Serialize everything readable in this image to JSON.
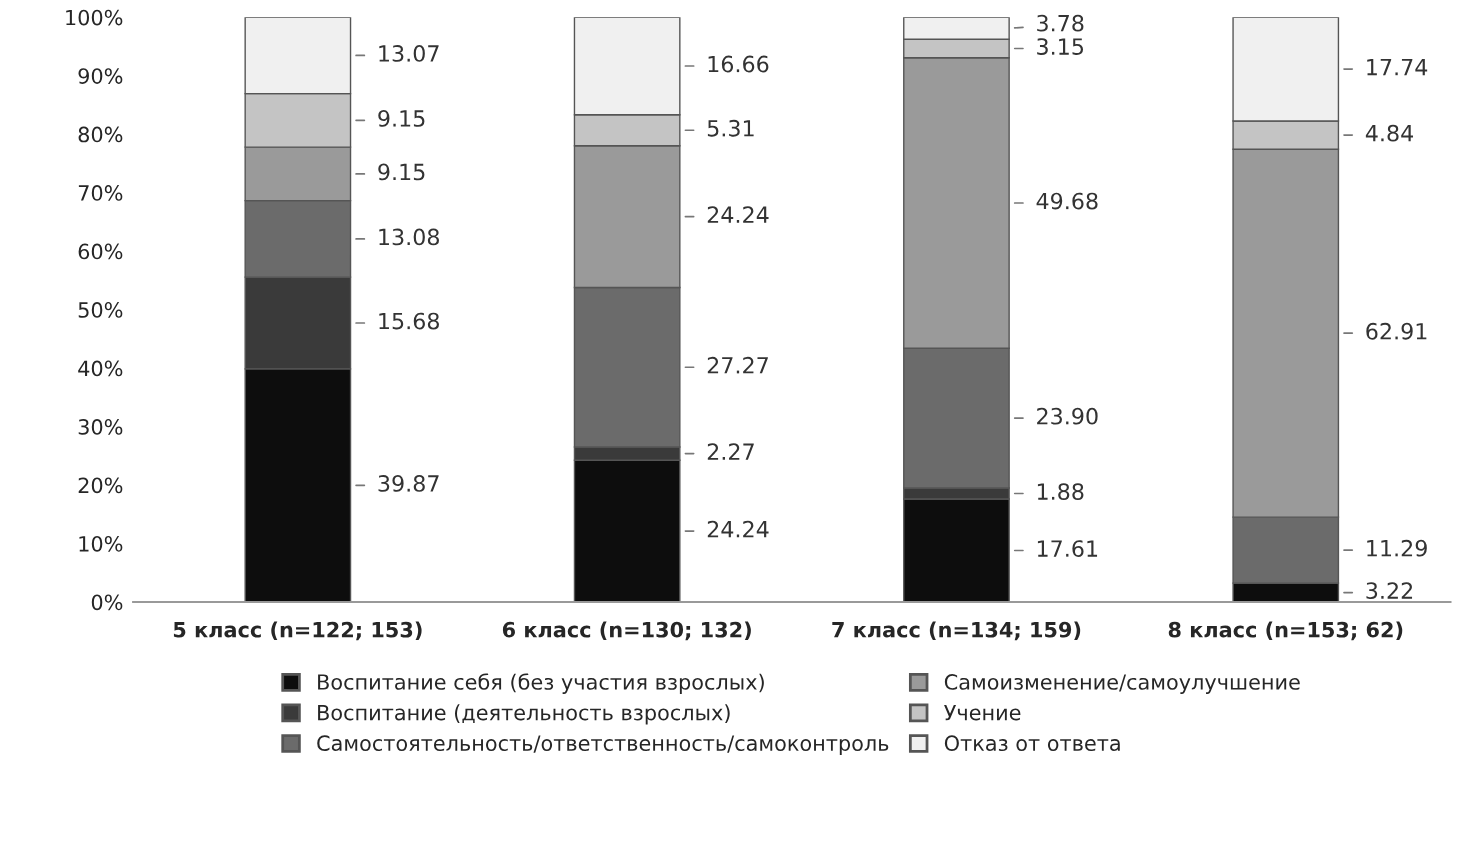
{
  "chart_data": {
    "type": "bar",
    "stacked": true,
    "categories": [
      "5 класс (n=122; 153)",
      "6 класс (n=130; 132)",
      "7 класс (n=134; 159)",
      "8 класс (n=153; 62)"
    ],
    "ylim": [
      0,
      100
    ],
    "yticks": [
      {
        "value": 0,
        "label": "0%"
      },
      {
        "value": 10,
        "label": "10%"
      },
      {
        "value": 20,
        "label": "20%"
      },
      {
        "value": 30,
        "label": "30%"
      },
      {
        "value": 40,
        "label": "40%"
      },
      {
        "value": 50,
        "label": "50%"
      },
      {
        "value": 60,
        "label": "60%"
      },
      {
        "value": 70,
        "label": "70%"
      },
      {
        "value": 80,
        "label": "80%"
      },
      {
        "value": 90,
        "label": "90%"
      },
      {
        "value": 100,
        "label": "100%"
      }
    ],
    "grid": false,
    "legend": "bottom",
    "series": [
      {
        "name": "Воспитание себя (без участия взрослых)",
        "color": "#0d0d0d",
        "values": [
          39.87,
          24.24,
          17.61,
          3.22
        ],
        "value_labels": [
          "39.87",
          "24.24",
          "17.61",
          "3.22"
        ]
      },
      {
        "name": "Воспитание (деятельность взрослых)",
        "color": "#3a3a3a",
        "values": [
          15.68,
          2.27,
          1.88,
          0
        ],
        "value_labels": [
          "15.68",
          "2.27",
          "1.88",
          null
        ]
      },
      {
        "name": "Самостоятельность/ответственность/самоконтроль",
        "color": "#6b6b6b",
        "values": [
          13.08,
          27.27,
          23.9,
          11.29
        ],
        "value_labels": [
          "13.08",
          "27.27",
          "23.90",
          "11.29"
        ]
      },
      {
        "name": "Самоизменение/самоулучшение",
        "color": "#9a9a9a",
        "values": [
          9.15,
          24.24,
          49.68,
          62.91
        ],
        "value_labels": [
          "9.15",
          "24.24",
          "49.68",
          "62.91"
        ]
      },
      {
        "name": "Учение",
        "color": "#c4c4c4",
        "values": [
          9.15,
          5.31,
          3.15,
          4.84
        ],
        "value_labels": [
          "9.15",
          "5.31",
          "3.15",
          "4.84"
        ]
      },
      {
        "name": "Отказ от ответа",
        "color": "#f0f0f0",
        "values": [
          13.07,
          16.66,
          3.78,
          17.74
        ],
        "value_labels": [
          "13.07",
          "16.66",
          "3.78",
          "17.74"
        ]
      }
    ]
  }
}
